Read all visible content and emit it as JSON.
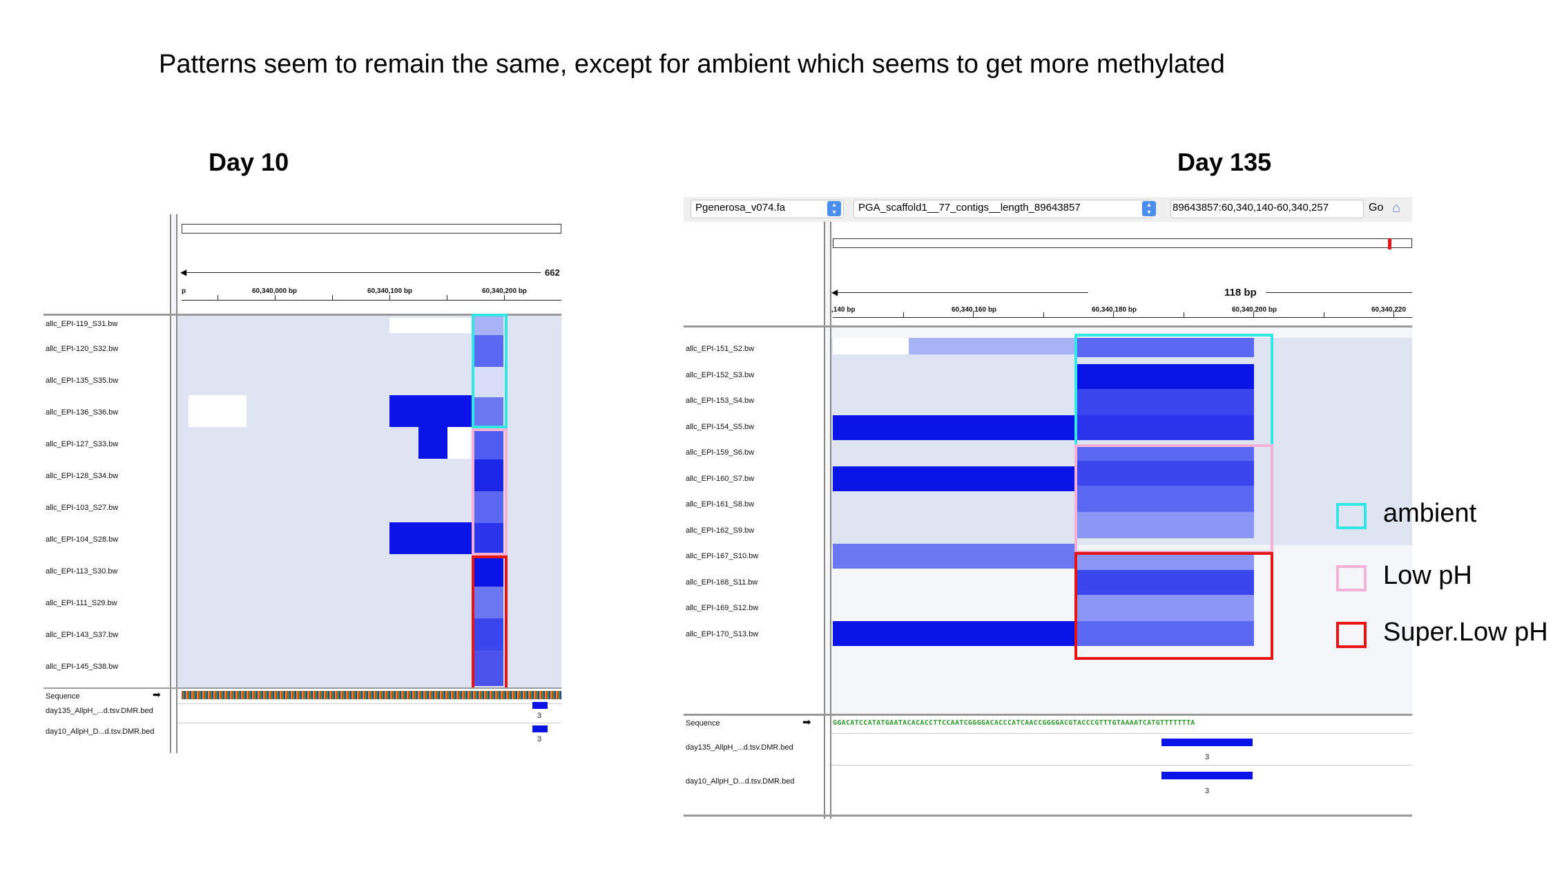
{
  "slide": {
    "title": "Patterns seem to remain the same, except for ambient which seems to get more methylated"
  },
  "colors": {
    "ambient": "#33e6e6",
    "low_ph": "#f4b0d6",
    "super_low_ph": "#e81414",
    "track_bg": "#dee4f2",
    "methylation_max": "#0a14e6"
  },
  "left_panel": {
    "title": "Day 10",
    "ruler": {
      "partial_left": "p",
      "ticks": [
        "60,340,000 bp",
        "60,340,100 bp",
        "60,340,200 bp"
      ],
      "span_label": "662"
    },
    "tracks": [
      "allc_EPI-119_S31.bw",
      "allc_EPI-120_S32.bw",
      "allc_EPI-135_S35.bw",
      "allc_EPI-136_S36.bw",
      "allc_EPI-127_S33.bw",
      "allc_EPI-128_S34.bw",
      "allc_EPI-103_S27.bw",
      "allc_EPI-104_S28.bw",
      "allc_EPI-113_S30.bw",
      "allc_EPI-111_S29.bw",
      "allc_EPI-143_S37.bw",
      "allc_EPI-145_S38.bw"
    ],
    "sequence_label": "Sequence",
    "bed_tracks": [
      {
        "name": "day135_AllpH_...d.tsv.DMR.bed",
        "score": "3"
      },
      {
        "name": "day10_AllpH_D...d.tsv.DMR.bed",
        "score": "3"
      }
    ]
  },
  "right_panel": {
    "title": "Day 135",
    "toolbar": {
      "genome": "Pgenerosa_v074.fa",
      "chromosome": "PGA_scaffold1__77_contigs__length_89643857",
      "locus": "89643857:60,340,140-60,340,257",
      "go_label": "Go"
    },
    "ruler": {
      "span_label": "118 bp",
      "ticks": [
        ",140 bp",
        "60,340,160 bp",
        "60,340,180 bp",
        "60,340,200 bp",
        "60,340,220"
      ]
    },
    "tracks": [
      "allc_EPI-151_S2.bw",
      "allc_EPI-152_S3.bw",
      "allc_EPI-153_S4.bw",
      "allc_EPI-154_S5.bw",
      "allc_EPI-159_S6.bw",
      "allc_EPI-160_S7.bw",
      "allc_EPI-161_S8.bw",
      "allc_EPI-162_S9.bw",
      "allc_EPI-167_S10.bw",
      "allc_EPI-168_S11.bw",
      "allc_EPI-169_S12.bw",
      "allc_EPI-170_S13.bw"
    ],
    "sequence_label": "Sequence",
    "sequence": "GGACATCCATATGAATACACACCTTCCAATCGGGGACACCCATCAACCGGGGACGTACCCGTTTGTAAAATCATGTTTTTTTA",
    "bed_tracks": [
      {
        "name": "day135_AllpH_...d.tsv.DMR.bed",
        "score": "3"
      },
      {
        "name": "day10_AllpH_D...d.tsv.DMR.bed",
        "score": "3"
      }
    ]
  },
  "legend": {
    "items": [
      {
        "label": "ambient",
        "color": "#33e6e6"
      },
      {
        "label": "Low pH",
        "color": "#f4b0d6"
      },
      {
        "label": "Super.Low pH",
        "color": "#e81414"
      }
    ]
  }
}
